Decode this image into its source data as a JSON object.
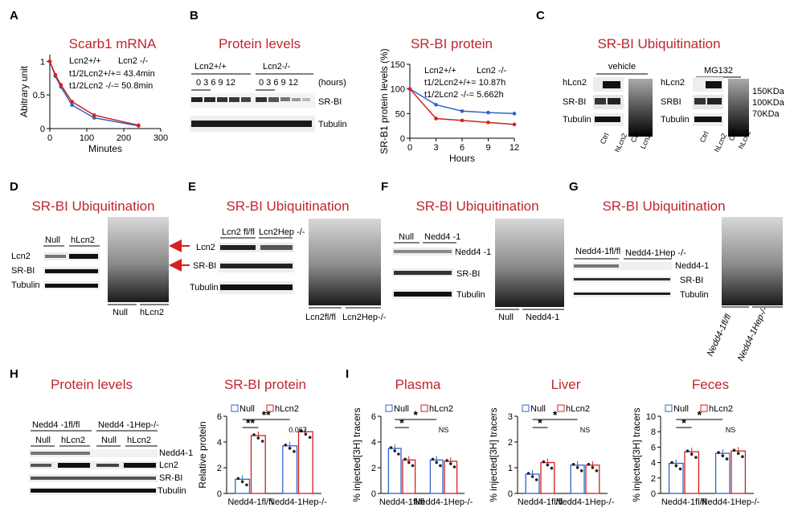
{
  "panels": {
    "A": {
      "letter": "A",
      "legend_1": "Lcn2+/+",
      "legend_2": "Lcn2 -/-",
      "annot_1": "t1/2Lcn2+/+= 43.4min",
      "annot_2": "t1/2Lcn2 -/-= 50.8min"
    },
    "B": {
      "letter": "B",
      "title": "Protein levels",
      "group_1": "Lcn2+/+",
      "group_2": "Lcn2-/-",
      "times_1": "0 3 6 9 12",
      "times_2": "0 3 6 9 12",
      "hours": "(hours)",
      "band_srbi": "SR-BI",
      "band_tubulin": "Tubulin"
    },
    "B2": {
      "legend_1": "Lcn2+/+",
      "legend_2": "Lcn2 -/-",
      "annot_1": "t1/2Lcn2+/+= 10.87h",
      "annot_2": "t1/2Lcn2 -/-= 5.662h"
    },
    "C": {
      "letter": "C",
      "title": "SR-BI Ubiquitination",
      "vehicle": "vehicle",
      "mg132": "MG132",
      "rows": [
        "hLcn2",
        "SR-BI",
        "Tubulin",
        "hLcn2",
        "SRBI",
        "Tubulin"
      ],
      "markers": [
        "150KDa",
        "100KDa",
        "70KDa"
      ],
      "lanes": [
        "Ctrl",
        "hLcn2",
        "Ctrl",
        "Lcn2",
        "Ctrl",
        "hLcn2",
        "Ctrl",
        "hLcn2"
      ]
    },
    "D": {
      "letter": "D",
      "title": "SR-BI Ubiquitination",
      "group_1": "Null",
      "group_2": "hLcn2",
      "rows": [
        "Lcn2",
        "SR-BI",
        "Tubulin"
      ],
      "lanes": [
        "Null",
        "hLcn2"
      ]
    },
    "E": {
      "letter": "E",
      "title": "SR-BI Ubiquitination",
      "group_1": "Lcn2 fl/fl",
      "group_2": "Lcn2Hep -/-",
      "rows": [
        "Lcn2",
        "SR-BI",
        "Tubulin"
      ],
      "lanes": [
        "Lcn2fl/fl",
        "Lcn2Hep-/-"
      ]
    },
    "F": {
      "letter": "F",
      "title": "SR-BI Ubiquitination",
      "group_1": "Null",
      "group_2": "Nedd4 -1",
      "rows": [
        "Nedd4 -1",
        "SR-BI",
        "Tubulin"
      ],
      "lanes": [
        "Null",
        "Nedd4-1"
      ]
    },
    "G": {
      "letter": "G",
      "title": "SR-BI Ubiquitination",
      "group_1": "Nedd4-1fl/fl",
      "group_2": "Nedd4-1Hep -/-",
      "rows": [
        "Nedd4-1",
        "SR-BI",
        "Tubulin"
      ],
      "lanes": [
        "Nedd4-1fl/fl",
        "Nedd4-1Hep-/-"
      ]
    },
    "H": {
      "letter": "H",
      "title": "Protein levels",
      "group_1": "Nedd4 -1fl/fl",
      "group_2": "Nedd4 -1Hep-/-",
      "subs": [
        "Null",
        "hLcn2",
        "Null",
        "hLcn2"
      ],
      "rows": [
        "Nedd4-1",
        "Lcn2",
        "SR-BI",
        "Tubulin"
      ]
    },
    "I": {
      "letter": "I"
    }
  },
  "colors": {
    "title_red": "#c0262d",
    "series_blue": "#2f63c8",
    "series_red": "#d32020"
  },
  "chart_data": [
    {
      "type": "line",
      "title": "Scarb1 mRNA",
      "xlabel": "Minutes",
      "ylabel": "Abitrary unit",
      "xlim": [
        0,
        300
      ],
      "ylim": [
        0,
        1.1
      ],
      "xticks": [
        0,
        100,
        200,
        300
      ],
      "yticks": [
        0,
        0.5,
        1.0
      ],
      "legend": "top-right",
      "series": [
        {
          "name": "Lcn2+/+",
          "color": "#2f63c8",
          "x": [
            0,
            15,
            30,
            60,
            120,
            240
          ],
          "y": [
            1.0,
            0.78,
            0.62,
            0.35,
            0.16,
            0.04
          ]
        },
        {
          "name": "Lcn2 -/-",
          "color": "#d32020",
          "x": [
            0,
            15,
            30,
            60,
            120,
            240
          ],
          "y": [
            1.0,
            0.8,
            0.65,
            0.4,
            0.2,
            0.05
          ]
        }
      ]
    },
    {
      "type": "line",
      "title": "SR-BI protein",
      "xlabel": "Hours",
      "ylabel": "SR-B1 protein levels (%)",
      "xlim": [
        0,
        12
      ],
      "ylim": [
        0,
        150
      ],
      "xticks": [
        0,
        3,
        6,
        9,
        12
      ],
      "yticks": [
        0,
        50,
        100,
        150
      ],
      "legend": "top-right",
      "series": [
        {
          "name": "Lcn2+/+",
          "color": "#2f63c8",
          "x": [
            0,
            3,
            6,
            9,
            12
          ],
          "y": [
            100,
            68,
            55,
            52,
            50
          ]
        },
        {
          "name": "Lcn2 -/-",
          "color": "#d32020",
          "x": [
            0,
            3,
            6,
            9,
            12
          ],
          "y": [
            100,
            40,
            36,
            32,
            28
          ]
        }
      ]
    },
    {
      "type": "bar",
      "title": "SR-BI protein",
      "ylabel": "Relative protein",
      "categories": [
        "Nedd4-1fl/fl",
        "Nedd4-1Hep-/-"
      ],
      "ylim": [
        0,
        6
      ],
      "yticks": [
        0,
        2,
        4,
        6
      ],
      "legend": "top",
      "series": [
        {
          "name": "Null",
          "values": [
            1.1,
            3.7
          ]
        },
        {
          "name": "hLcn2",
          "values": [
            4.5,
            4.8
          ]
        }
      ],
      "annotations": [
        "**",
        "**",
        "0.067"
      ]
    },
    {
      "type": "bar",
      "title": "Plasma",
      "ylabel": "% injected[3H] tracers",
      "categories": [
        "Nedd4-1fl/fl",
        "Nedd4-1Hep-/-"
      ],
      "ylim": [
        0,
        6
      ],
      "yticks": [
        0,
        2,
        4,
        6
      ],
      "legend": "top",
      "series": [
        {
          "name": "Null",
          "values": [
            3.5,
            2.6
          ]
        },
        {
          "name": "hLcn2",
          "values": [
            2.6,
            2.5
          ]
        }
      ],
      "annotations": [
        "*",
        "*",
        "NS"
      ]
    },
    {
      "type": "bar",
      "title": "Liver",
      "ylabel": "% injected[3H] tracers",
      "categories": [
        "Nedd4-1fl/fl",
        "Nedd4-1Hep-/-"
      ],
      "ylim": [
        0,
        3
      ],
      "yticks": [
        0,
        1,
        2,
        3
      ],
      "legend": "top",
      "series": [
        {
          "name": "Null",
          "values": [
            0.75,
            1.1
          ]
        },
        {
          "name": "hLcn2",
          "values": [
            1.2,
            1.1
          ]
        }
      ],
      "annotations": [
        "*",
        "*",
        "NS"
      ]
    },
    {
      "type": "bar",
      "title": "Feces",
      "ylabel": "% injected[3H] tracers",
      "categories": [
        "Nedd4-1fl/fl",
        "Nedd4-1Hep-/-"
      ],
      "ylim": [
        0,
        10
      ],
      "yticks": [
        0,
        2,
        4,
        6,
        8,
        10
      ],
      "legend": "top",
      "series": [
        {
          "name": "Null",
          "values": [
            3.9,
            5.2
          ]
        },
        {
          "name": "hLcn2",
          "values": [
            5.4,
            5.5
          ]
        }
      ],
      "annotations": [
        "*",
        "*",
        "NS"
      ]
    }
  ]
}
